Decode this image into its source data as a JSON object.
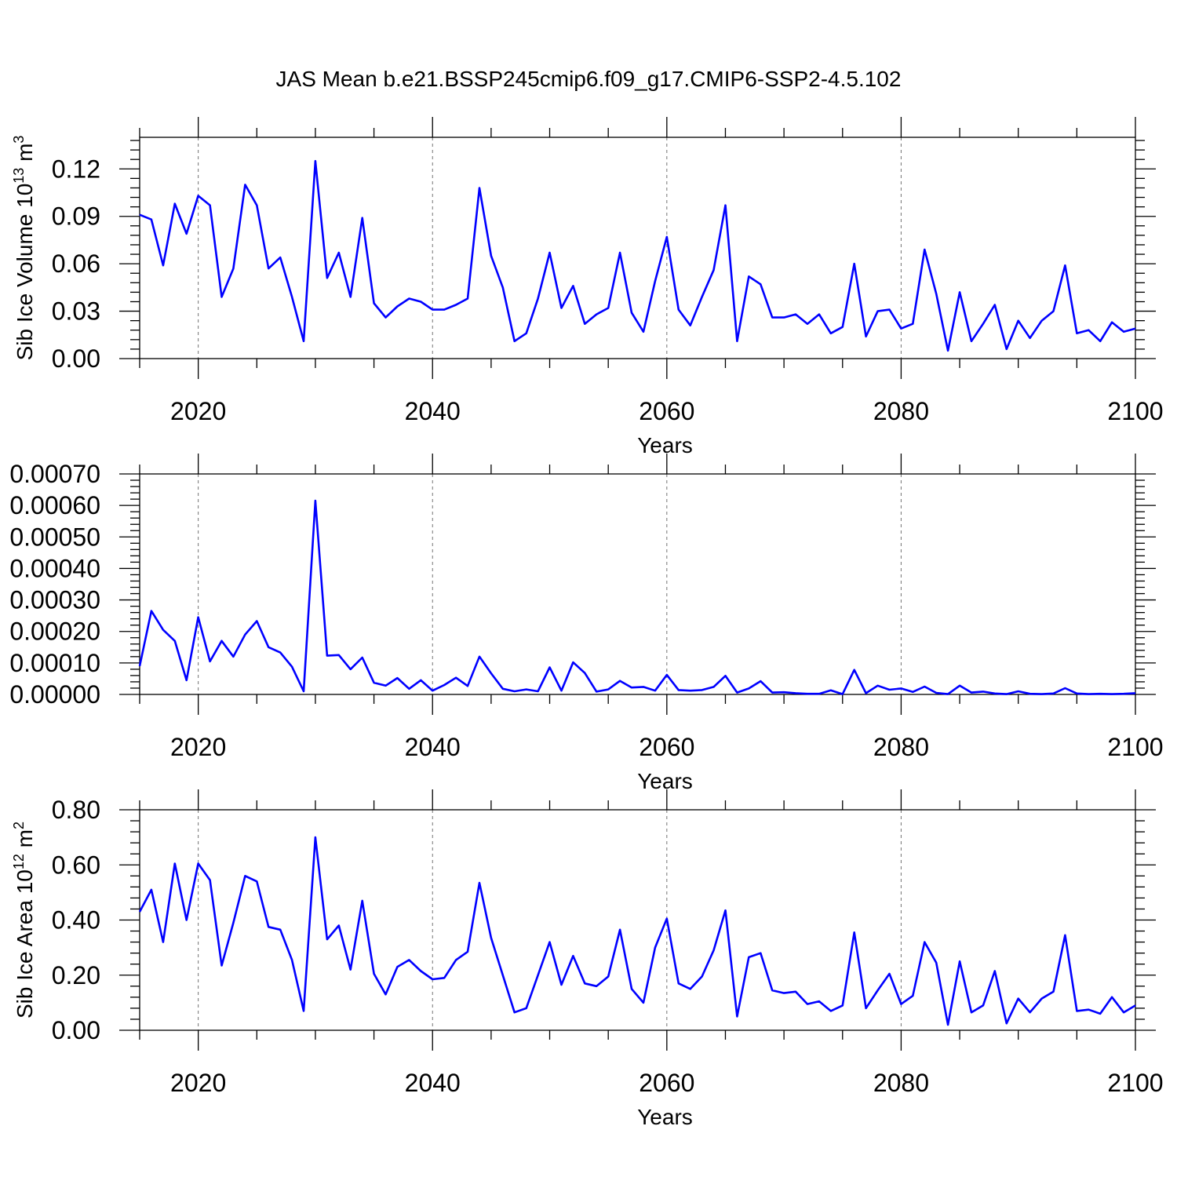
{
  "title": "JAS Mean b.e21.BSSP245cmip6.f09_g17.CMIP6-SSP2-4.5.102",
  "line_color": "#0000FF",
  "chart_data": [
    {
      "type": "line",
      "title": "",
      "xlabel": "Years",
      "ylabel": "Sib Ice Volume 10",
      "ylabel_sup": "13",
      "ylabel_unit": " m",
      "ylabel_unit_sup": "3",
      "xlim": [
        2015,
        2100
      ],
      "ylim": [
        0,
        0.14
      ],
      "xticks": [
        2020,
        2040,
        2060,
        2080,
        2100
      ],
      "xtick_labels": [
        "2020",
        "2040",
        "2060",
        "2080",
        "2100"
      ],
      "yticks": [
        0,
        0.03,
        0.06,
        0.09,
        0.12
      ],
      "ytick_labels": [
        "0.00",
        "0.03",
        "0.06",
        "0.09",
        "0.12"
      ],
      "grid": "dashed vertical at major x ticks",
      "x_start": 2015,
      "values": [
        0.091,
        0.088,
        0.059,
        0.098,
        0.079,
        0.103,
        0.097,
        0.039,
        0.057,
        0.11,
        0.097,
        0.057,
        0.064,
        0.039,
        0.011,
        0.125,
        0.051,
        0.067,
        0.039,
        0.089,
        0.035,
        0.026,
        0.033,
        0.038,
        0.036,
        0.031,
        0.031,
        0.034,
        0.038,
        0.108,
        0.065,
        0.045,
        0.011,
        0.016,
        0.038,
        0.067,
        0.032,
        0.046,
        0.022,
        0.028,
        0.032,
        0.067,
        0.029,
        0.017,
        0.049,
        0.077,
        0.031,
        0.021,
        0.039,
        0.056,
        0.097,
        0.011,
        0.052,
        0.047,
        0.026,
        0.026,
        0.028,
        0.022,
        0.028,
        0.016,
        0.02,
        0.06,
        0.014,
        0.03,
        0.031,
        0.019,
        0.022,
        0.069,
        0.041,
        0.005,
        0.042,
        0.011,
        0.022,
        0.034,
        0.006,
        0.024,
        0.013,
        0.024,
        0.03,
        0.059,
        0.016,
        0.018,
        0.011,
        0.023,
        0.017,
        0.019
      ]
    },
    {
      "type": "line",
      "title": "",
      "xlabel": "Years",
      "ylabel": "",
      "xlim": [
        2015,
        2100
      ],
      "ylim": [
        0,
        0.0007
      ],
      "xticks": [
        2020,
        2040,
        2060,
        2080,
        2100
      ],
      "xtick_labels": [
        "2020",
        "2040",
        "2060",
        "2080",
        "2100"
      ],
      "yticks": [
        0,
        0.0001,
        0.0002,
        0.0003,
        0.0004,
        0.0005,
        0.0006,
        0.0007
      ],
      "ytick_labels": [
        "0.00000",
        "0.00010",
        "0.00020",
        "0.00030",
        "0.00040",
        "0.00050",
        "0.00060",
        "0.00070"
      ],
      "grid": "dashed vertical at major x ticks",
      "x_start": 2015,
      "values": [
        9e-05,
        0.000265,
        0.000205,
        0.00017,
        4.5e-05,
        0.000245,
        0.000105,
        0.00017,
        0.00012,
        0.00019,
        0.000233,
        0.00015,
        0.000133,
        8.8e-05,
        1e-05,
        0.000615,
        0.000123,
        0.000125,
        8e-05,
        0.000117,
        3.7e-05,
        2.8e-05,
        5.2e-05,
        1.8e-05,
        4.5e-05,
        1.2e-05,
        3e-05,
        5.3e-05,
        2.7e-05,
        0.00012,
        6.7e-05,
        1.8e-05,
        1e-05,
        1.6e-05,
        1e-05,
        8.6e-05,
        1.2e-05,
        0.000102,
        6.8e-05,
        9e-06,
        1.6e-05,
        4.3e-05,
        2.2e-05,
        2.4e-05,
        1.2e-05,
        6.2e-05,
        1.4e-05,
        1.2e-05,
        1.4e-05,
        2.4e-05,
        5.9e-05,
        6e-06,
        1.9e-05,
        4.2e-05,
        6e-06,
        7e-06,
        4e-06,
        2e-06,
        2e-06,
        1.3e-05,
        1e-06,
        7.8e-05,
        4e-06,
        2.8e-05,
        1.5e-05,
        1.9e-05,
        8e-06,
        2.5e-05,
        5e-06,
        1e-06,
        2.8e-05,
        6e-06,
        9e-06,
        3e-06,
        1e-06,
        1e-05,
        2e-06,
        1e-06,
        3e-06,
        2e-05,
        3e-06,
        1e-06,
        2e-06,
        1e-06,
        2e-06,
        4e-06
      ]
    },
    {
      "type": "line",
      "title": "",
      "xlabel": "Years",
      "ylabel": "Sib Ice Area 10",
      "ylabel_sup": "12",
      "ylabel_unit": " m",
      "ylabel_unit_sup": "2",
      "xlim": [
        2015,
        2100
      ],
      "ylim": [
        0,
        0.8
      ],
      "xticks": [
        2020,
        2040,
        2060,
        2080,
        2100
      ],
      "xtick_labels": [
        "2020",
        "2040",
        "2060",
        "2080",
        "2100"
      ],
      "yticks": [
        0,
        0.2,
        0.4,
        0.6,
        0.8
      ],
      "ytick_labels": [
        "0.00",
        "0.20",
        "0.40",
        "0.60",
        "0.80"
      ],
      "grid": "dashed vertical at major x ticks",
      "x_start": 2015,
      "values": [
        0.43,
        0.51,
        0.32,
        0.605,
        0.4,
        0.605,
        0.545,
        0.235,
        0.39,
        0.56,
        0.54,
        0.375,
        0.365,
        0.255,
        0.07,
        0.7,
        0.33,
        0.38,
        0.22,
        0.47,
        0.205,
        0.13,
        0.23,
        0.255,
        0.215,
        0.185,
        0.19,
        0.255,
        0.285,
        0.535,
        0.335,
        0.2,
        0.065,
        0.08,
        0.2,
        0.32,
        0.165,
        0.27,
        0.17,
        0.16,
        0.195,
        0.365,
        0.15,
        0.1,
        0.3,
        0.405,
        0.17,
        0.15,
        0.195,
        0.29,
        0.435,
        0.05,
        0.265,
        0.28,
        0.145,
        0.135,
        0.14,
        0.095,
        0.105,
        0.07,
        0.09,
        0.355,
        0.08,
        0.145,
        0.205,
        0.095,
        0.125,
        0.32,
        0.245,
        0.02,
        0.25,
        0.065,
        0.09,
        0.215,
        0.025,
        0.115,
        0.065,
        0.115,
        0.14,
        0.345,
        0.07,
        0.075,
        0.06,
        0.12,
        0.065,
        0.09
      ]
    }
  ]
}
